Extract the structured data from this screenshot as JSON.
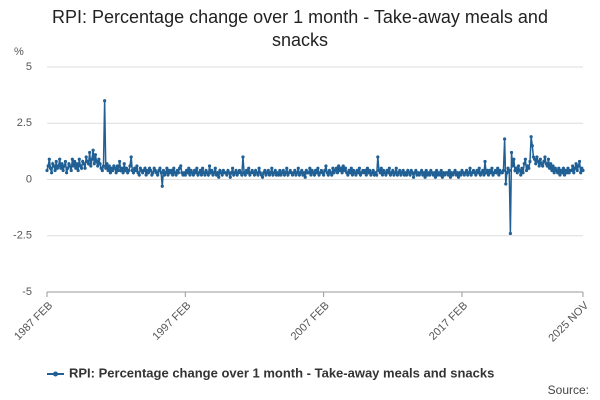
{
  "chart_data": {
    "type": "line",
    "title": "RPI: Percentage change over 1 month - Take-away meals and snacks",
    "y_label": "%",
    "source": "Source:",
    "grid": true,
    "ylim": [
      -5,
      5
    ],
    "yticks": [
      5,
      2.5,
      0,
      -2.5,
      -5
    ],
    "categories": [
      "1987 FEB",
      null,
      null,
      null,
      null,
      null,
      null,
      null,
      null,
      null,
      null,
      null,
      null,
      null,
      null,
      null,
      null,
      null,
      null,
      null,
      null,
      null,
      null,
      null,
      null,
      null,
      null,
      null,
      null,
      null,
      null,
      null,
      null,
      null,
      null,
      null,
      null,
      null,
      null,
      null,
      null,
      null,
      null,
      null,
      null,
      null,
      null,
      null,
      null,
      null,
      null,
      null,
      null,
      null,
      null,
      null,
      null,
      null,
      null,
      null,
      null,
      null,
      null,
      null,
      null,
      null,
      null,
      null,
      null,
      null,
      null,
      null,
      null,
      null,
      null,
      null,
      null,
      null,
      null,
      null,
      null,
      null,
      null,
      null,
      null,
      null,
      null,
      null,
      null,
      null,
      null,
      null,
      null,
      null,
      null,
      null,
      null,
      null,
      null,
      null,
      null,
      null,
      null,
      null,
      null,
      null,
      null,
      null,
      null,
      null,
      null,
      null,
      null,
      null,
      null,
      null,
      null,
      null,
      null,
      null,
      "1997 FEB",
      null,
      null,
      null,
      null,
      null,
      null,
      null,
      null,
      null,
      null,
      null,
      null,
      null,
      null,
      null,
      null,
      null,
      null,
      null,
      null,
      null,
      null,
      null,
      null,
      null,
      null,
      null,
      null,
      null,
      null,
      null,
      null,
      null,
      null,
      null,
      null,
      null,
      null,
      null,
      null,
      null,
      null,
      null,
      null,
      null,
      null,
      null,
      null,
      null,
      null,
      null,
      null,
      null,
      null,
      null,
      null,
      null,
      null,
      null,
      null,
      null,
      null,
      null,
      null,
      null,
      null,
      null,
      null,
      null,
      null,
      null,
      null,
      null,
      null,
      null,
      null,
      null,
      null,
      null,
      null,
      null,
      null,
      null,
      null,
      null,
      null,
      null,
      null,
      null,
      null,
      null,
      null,
      null,
      null,
      null,
      null,
      null,
      null,
      null,
      null,
      null,
      null,
      null,
      null,
      null,
      null,
      null,
      null,
      null,
      null,
      null,
      null,
      null,
      null,
      null,
      null,
      null,
      null,
      null,
      "2007 FEB",
      null,
      null,
      null,
      null,
      null,
      null,
      null,
      null,
      null,
      null,
      null,
      null,
      null,
      null,
      null,
      null,
      null,
      null,
      null,
      null,
      null,
      null,
      null,
      null,
      null,
      null,
      null,
      null,
      null,
      null,
      null,
      null,
      null,
      null,
      null,
      null,
      null,
      null,
      null,
      null,
      null,
      null,
      null,
      null,
      null,
      null,
      null,
      null,
      null,
      null,
      null,
      null,
      null,
      null,
      null,
      null,
      null,
      null,
      null,
      null,
      null,
      null,
      null,
      null,
      null,
      null,
      null,
      null,
      null,
      null,
      null,
      null,
      null,
      null,
      null,
      null,
      null,
      null,
      null,
      null,
      null,
      null,
      null,
      null,
      null,
      null,
      null,
      null,
      null,
      null,
      null,
      null,
      null,
      null,
      null,
      null,
      null,
      null,
      null,
      null,
      null,
      null,
      null,
      null,
      null,
      null,
      null,
      null,
      null,
      null,
      null,
      null,
      null,
      null,
      null,
      null,
      null,
      null,
      null,
      "2017 FEB",
      null,
      null,
      null,
      null,
      null,
      null,
      null,
      null,
      null,
      null,
      null,
      null,
      null,
      null,
      null,
      null,
      null,
      null,
      null,
      null,
      null,
      null,
      null,
      null,
      null,
      null,
      null,
      null,
      null,
      null,
      null,
      null,
      null,
      null,
      null,
      null,
      null,
      null,
      null,
      null,
      null,
      null,
      null,
      null,
      null,
      null,
      null,
      null,
      null,
      null,
      null,
      null,
      null,
      null,
      null,
      null,
      null,
      null,
      null,
      null,
      null,
      null,
      null,
      null,
      null,
      null,
      null,
      null,
      null,
      null,
      null,
      null,
      null,
      null,
      null,
      null,
      null,
      null,
      null,
      null,
      null,
      null,
      null,
      null,
      null,
      null,
      null,
      null,
      null,
      null,
      null,
      null,
      null,
      null,
      null,
      null,
      null,
      null,
      null,
      null,
      null,
      null,
      null,
      null,
      "2025 NOV"
    ],
    "series": [
      {
        "name": "RPI: Percentage change over 1 month - Take-away meals and snacks",
        "color": "#206095",
        "values": [
          0.4,
          0.6,
          0.9,
          0.5,
          0.3,
          0.7,
          0.6,
          0.4,
          0.8,
          0.5,
          0.6,
          0.9,
          0.5,
          0.7,
          0.4,
          0.6,
          0.8,
          0.3,
          0.5,
          0.7,
          0.6,
          0.4,
          0.9,
          0.6,
          0.8,
          0.5,
          0.7,
          0.4,
          0.9,
          0.6,
          0.5,
          0.8,
          0.7,
          0.5,
          1.0,
          0.8,
          0.7,
          1.2,
          0.6,
          0.9,
          1.3,
          0.7,
          1.1,
          0.8,
          0.6,
          0.9,
          0.7,
          0.5,
          0.4,
          0.6,
          3.5,
          0.5,
          0.7,
          0.4,
          0.6,
          0.3,
          0.5,
          0.4,
          0.6,
          0.5,
          0.3,
          0.6,
          0.4,
          0.8,
          0.4,
          0.5,
          0.3,
          0.7,
          0.4,
          0.5,
          0.3,
          0.4,
          0.6,
          1.0,
          0.4,
          0.3,
          0.5,
          0.4,
          0.6,
          0.3,
          0.2,
          0.5,
          0.4,
          0.3,
          0.4,
          0.5,
          0.2,
          0.4,
          0.3,
          0.5,
          0.4,
          0.2,
          0.3,
          0.5,
          0.4,
          0.3,
          0.2,
          0.4,
          0.5,
          0.3,
          -0.3,
          0.4,
          0.2,
          0.3,
          0.5,
          0.2,
          0.4,
          0.3,
          0.4,
          0.2,
          0.5,
          0.3,
          0.2,
          0.4,
          0.3,
          0.5,
          0.6,
          0.3,
          0.2,
          0.3,
          0.2,
          0.4,
          0.3,
          0.5,
          0.2,
          0.4,
          0.3,
          0.2,
          0.4,
          0.3,
          0.5,
          0.2,
          0.3,
          0.4,
          0.2,
          0.5,
          0.3,
          0.2,
          0.4,
          0.3,
          0.2,
          0.6,
          0.3,
          0.4,
          0.2,
          0.3,
          0.5,
          0.2,
          0.3,
          0.1,
          0.4,
          0.3,
          0.2,
          0.4,
          0.3,
          0.3,
          0.2,
          0.4,
          0.3,
          0.1,
          0.3,
          0.5,
          0.2,
          0.3,
          0.4,
          0.2,
          0.3,
          0.4,
          0.3,
          0.2,
          1.0,
          0.3,
          0.2,
          0.4,
          0.3,
          0.5,
          0.2,
          0.3,
          0.4,
          0.3,
          0.2,
          0.4,
          0.3,
          0.2,
          0.5,
          0.3,
          0.2,
          0.1,
          0.3,
          0.4,
          0.2,
          0.3,
          0.4,
          0.2,
          0.3,
          0.5,
          0.2,
          0.3,
          0.4,
          0.2,
          0.3,
          0.2,
          0.4,
          0.2,
          0.3,
          0.4,
          0.2,
          0.3,
          0.5,
          0.2,
          0.3,
          0.4,
          0.3,
          0.2,
          0.3,
          0.4,
          0.2,
          0.3,
          0.5,
          0.2,
          0.3,
          0.4,
          0.2,
          0.3,
          0.1,
          0.4,
          0.3,
          0.3,
          0.5,
          0.2,
          0.4,
          0.3,
          0.2,
          0.4,
          0.3,
          0.5,
          0.2,
          0.3,
          0.4,
          0.3,
          0.2,
          0.4,
          0.6,
          0.3,
          0.2,
          0.4,
          0.3,
          0.2,
          0.5,
          0.3,
          0.4,
          0.5,
          0.3,
          0.6,
          0.4,
          0.5,
          0.3,
          0.6,
          0.4,
          0.5,
          0.3,
          0.2,
          0.4,
          0.3,
          0.5,
          0.2,
          0.4,
          0.3,
          0.2,
          0.4,
          0.3,
          0.5,
          0.2,
          0.3,
          0.4,
          0.3,
          0.4,
          0.2,
          0.5,
          0.3,
          0.4,
          0.2,
          0.3,
          0.4,
          0.2,
          0.3,
          0.2,
          1.0,
          0.4,
          0.3,
          0.5,
          0.2,
          0.4,
          0.3,
          0.2,
          0.4,
          0.3,
          0.5,
          0.2,
          0.3,
          0.4,
          0.2,
          0.3,
          0.5,
          0.2,
          0.3,
          0.4,
          0.2,
          0.3,
          0.4,
          0.2,
          0.3,
          0.2,
          0.4,
          0.3,
          0.2,
          0.4,
          0.3,
          0.1,
          0.3,
          0.4,
          0.2,
          0.3,
          0.2,
          0.3,
          0.4,
          0.2,
          0.3,
          0.1,
          0.4,
          0.2,
          0.3,
          0.2,
          0.4,
          0.3,
          0.2,
          0.3,
          0.1,
          0.4,
          0.2,
          0.3,
          0.2,
          0.4,
          0.1,
          0.3,
          0.2,
          0.3,
          0.3,
          0.2,
          0.4,
          0.1,
          0.3,
          0.2,
          0.3,
          0.4,
          0.2,
          0.3,
          0.1,
          0.3,
          0.2,
          0.4,
          0.3,
          0.2,
          0.3,
          0.4,
          0.2,
          0.3,
          0.5,
          0.2,
          0.3,
          0.4,
          0.3,
          0.2,
          0.4,
          0.3,
          0.5,
          0.2,
          0.3,
          0.4,
          0.2,
          0.8,
          0.3,
          0.4,
          0.2,
          0.4,
          0.3,
          0.5,
          0.2,
          0.3,
          0.4,
          0.3,
          0.5,
          0.2,
          0.4,
          0.3,
          0.3,
          0.4,
          1.8,
          -0.2,
          0.3,
          0.5,
          0.4,
          -2.4,
          1.2,
          0.6,
          0.9,
          0.4,
          0.5,
          0.3,
          0.6,
          0.4,
          0.2,
          0.5,
          0.3,
          0.7,
          0.9,
          0.4,
          0.6,
          0.5,
          0.8,
          1.9,
          1.5,
          1.0,
          0.9,
          0.7,
          1.0,
          0.8,
          0.6,
          0.9,
          0.7,
          0.6,
          0.8,
          1.0,
          0.7,
          0.6,
          0.9,
          0.5,
          0.7,
          0.4,
          0.6,
          0.3,
          0.5,
          0.4,
          0.3,
          0.5,
          0.2,
          0.4,
          0.3,
          0.5,
          0.2,
          0.4,
          0.3,
          0.5,
          0.3,
          0.4,
          0.4,
          0.6,
          0.3,
          0.5,
          0.7,
          0.4,
          0.6,
          0.8,
          0.3,
          0.5,
          0.4
        ]
      }
    ]
  }
}
